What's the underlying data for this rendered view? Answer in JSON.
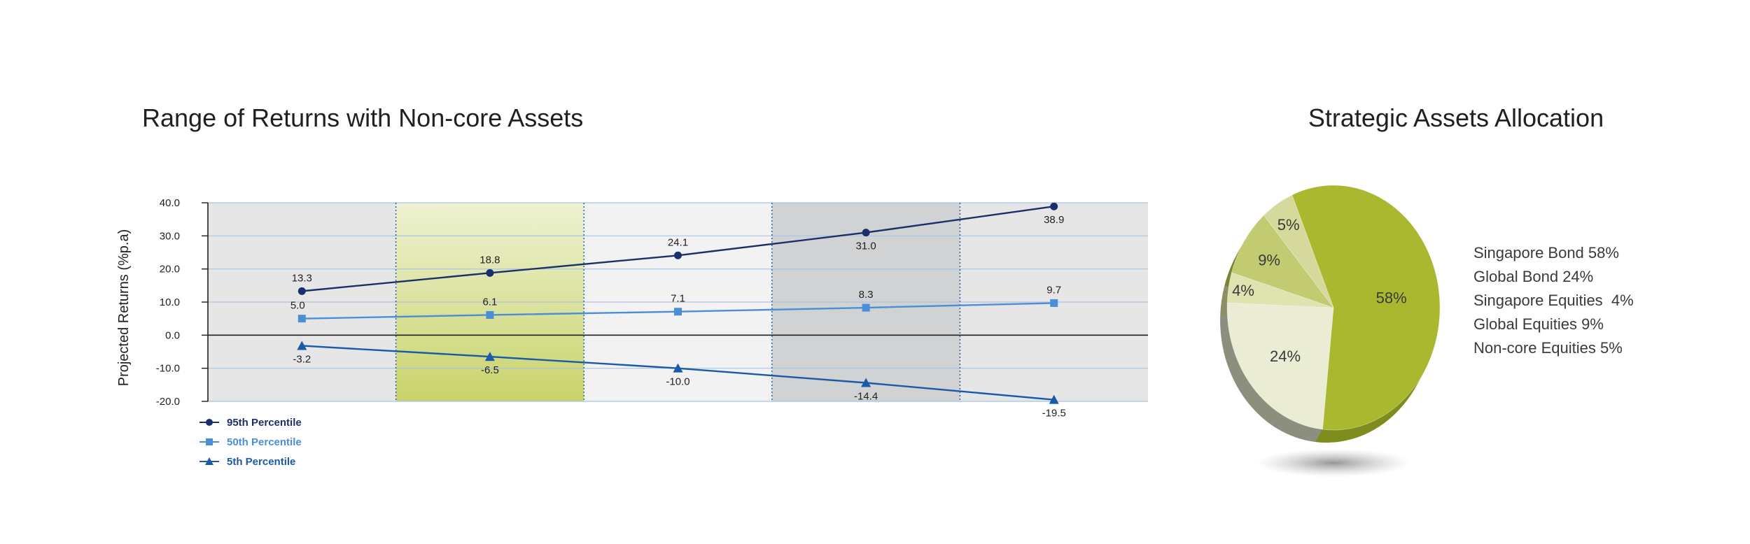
{
  "chart_data": [
    {
      "type": "line",
      "title": "Range of Returns with Non-core Assets",
      "ylabel": "Projected Returns (%p.a)",
      "xlabel": "",
      "ylim": [
        -20,
        40
      ],
      "yticks": [
        "40.0",
        "30.0",
        "20.0",
        "10.0",
        "0.0",
        "-10.0",
        "-20.0"
      ],
      "categories": [
        "",
        "",
        "",
        "",
        ""
      ],
      "grid": true,
      "legend": "bottom-left",
      "band_colors": [
        "#e6e6e6",
        "#dbe2a6",
        "#f2f2f2",
        "#d0d2d4",
        "#e6e6e6"
      ],
      "series": [
        {
          "name": "95th Percentile",
          "values": [
            13.3,
            18.8,
            24.1,
            31.0,
            38.9
          ],
          "labels": [
            "13.3",
            "18.8",
            "24.1",
            "31.0",
            "38.9"
          ],
          "color": "#1b2f6b",
          "marker": "circle"
        },
        {
          "name": "50th Percentile",
          "values": [
            5.0,
            6.1,
            7.1,
            8.3,
            9.7
          ],
          "labels": [
            "5.0",
            "6.1",
            "7.1",
            "8.3",
            "9.7"
          ],
          "color": "#4a8fd6",
          "marker": "square"
        },
        {
          "name": "5th Percentile",
          "values": [
            -3.2,
            -6.5,
            -10.0,
            -14.4,
            -19.5
          ],
          "labels": [
            "-3.2",
            "-6.5",
            "-10.0",
            "-14.4",
            "-19.5"
          ],
          "color": "#1a5aa8",
          "marker": "triangle"
        }
      ]
    },
    {
      "type": "pie",
      "title": "Strategic Assets Allocation",
      "slices": [
        {
          "name": "Singapore Bond",
          "value": 58,
          "label": "58%",
          "color": "#a9b82f"
        },
        {
          "name": "Global Bond",
          "value": 24,
          "label": "24%",
          "color": "#ebecd4"
        },
        {
          "name": "Singapore Equities",
          "value": 4,
          "label": "4%",
          "color": "#dfe3b0"
        },
        {
          "name": "Global Equities",
          "value": 9,
          "label": "9%",
          "color": "#c3cb72"
        },
        {
          "name": "Non-core Equities",
          "value": 5,
          "label": "5%",
          "color": "#d6d99c"
        }
      ],
      "legend": [
        "Singapore Bond 58%",
        "Global Bond 24%",
        "Singapore Equities  4%",
        "Global Equities 9%",
        "Non-core Equities 5%"
      ]
    }
  ]
}
